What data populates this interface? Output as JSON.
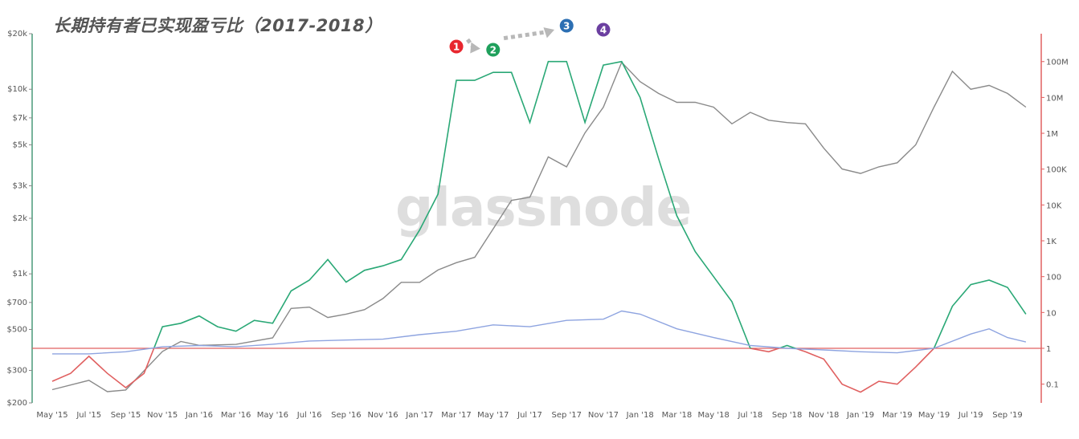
{
  "title": "长期持有者已实现盈亏比（2017-2018）",
  "watermark": "glassnode",
  "chart_data": {
    "type": "line",
    "title": "长期持有者已实现盈亏比（2017-2018）",
    "x_ticks": [
      "May '15",
      "Jul '15",
      "Sep '15",
      "Nov '15",
      "Jan '16",
      "Mar '16",
      "May '16",
      "Jul '16",
      "Sep '16",
      "Nov '16",
      "Jan '17",
      "Mar '17",
      "May '17",
      "Jul '17",
      "Sep '17",
      "Nov '17",
      "Jan '18",
      "Mar '18",
      "May '18",
      "Jul '18",
      "Sep '18",
      "Nov '18",
      "Jan '19",
      "Mar '19",
      "May '19",
      "Jul '19",
      "Sep '19"
    ],
    "left_axis": {
      "scale": "log",
      "unit": "USD",
      "range": [
        200,
        20000
      ],
      "ticks": [
        {
          "v": 200,
          "label": "$200"
        },
        {
          "v": 300,
          "label": "$300"
        },
        {
          "v": 500,
          "label": "$500"
        },
        {
          "v": 700,
          "label": "$700"
        },
        {
          "v": 1000,
          "label": "$1k"
        },
        {
          "v": 2000,
          "label": "$2k"
        },
        {
          "v": 3000,
          "label": "$3k"
        },
        {
          "v": 5000,
          "label": "$5k"
        },
        {
          "v": 7000,
          "label": "$7k"
        },
        {
          "v": 10000,
          "label": "$10k"
        },
        {
          "v": 20000,
          "label": "$20k"
        }
      ]
    },
    "right_axis": {
      "scale": "log",
      "range": [
        0.03,
        600000000
      ],
      "color": "#e06060",
      "ticks": [
        {
          "v": 0.1,
          "label": "0.1"
        },
        {
          "v": 1,
          "label": "1"
        },
        {
          "v": 10,
          "label": "10"
        },
        {
          "v": 100,
          "label": "100"
        },
        {
          "v": 1000,
          "label": "1K"
        },
        {
          "v": 10000,
          "label": "10K"
        },
        {
          "v": 100000,
          "label": "100K"
        },
        {
          "v": 1000000,
          "label": "1M"
        },
        {
          "v": 10000000,
          "label": "10M"
        },
        {
          "v": 100000000,
          "label": "100M"
        }
      ]
    },
    "reference_line": 1,
    "series": [
      {
        "axis": "left",
        "color": "#8a8a8a",
        "points": [
          [
            "May '15",
            236
          ],
          [
            "Jul '15",
            265
          ],
          [
            "Aug '15",
            230
          ],
          [
            "Sep '15",
            235
          ],
          [
            "Nov '15",
            380
          ],
          [
            "Dec '15",
            430
          ],
          [
            "Jan '16",
            410
          ],
          [
            "Mar '16",
            415
          ],
          [
            "May '16",
            450
          ],
          [
            "Jun '16",
            650
          ],
          [
            "Jul '16",
            660
          ],
          [
            "Aug '16",
            580
          ],
          [
            "Sep '16",
            605
          ],
          [
            "Oct '16",
            640
          ],
          [
            "Nov '16",
            735
          ],
          [
            "Dec '16",
            900
          ],
          [
            "Jan '17",
            900
          ],
          [
            "Feb '17",
            1050
          ],
          [
            "Mar '17",
            1150
          ],
          [
            "Apr '17",
            1230
          ],
          [
            "May '17",
            1750
          ],
          [
            "Jun '17",
            2500
          ],
          [
            "Jul '17",
            2600
          ],
          [
            "Aug '17",
            4300
          ],
          [
            "Sep '17",
            3800
          ],
          [
            "Oct '17",
            5800
          ],
          [
            "Nov '17",
            8000
          ],
          [
            "Dec '17",
            14000
          ],
          [
            "Jan '18",
            11000
          ],
          [
            "Feb '18",
            9500
          ],
          [
            "Mar '18",
            8500
          ],
          [
            "Apr '18",
            8500
          ],
          [
            "May '18",
            8000
          ],
          [
            "Jun '18",
            6500
          ],
          [
            "Jul '18",
            7500
          ],
          [
            "Aug '18",
            6800
          ],
          [
            "Sep '18",
            6600
          ],
          [
            "Oct '18",
            6500
          ],
          [
            "Nov '18",
            4800
          ],
          [
            "Dec '18",
            3700
          ],
          [
            "Jan '19",
            3500
          ],
          [
            "Feb '19",
            3800
          ],
          [
            "Mar '19",
            4000
          ],
          [
            "Apr '19",
            5000
          ],
          [
            "May '19",
            8000
          ],
          [
            "Jun '19",
            12500
          ],
          [
            "Jul '19",
            10000
          ],
          [
            "Aug '19",
            10500
          ],
          [
            "Sep '19",
            9500
          ],
          [
            "Oct '19",
            8000
          ]
        ]
      },
      {
        "axis": "right",
        "color": "#2aa876",
        "color_below_1": "#e06060",
        "points": [
          [
            "May '15",
            0.12
          ],
          [
            "Jun '15",
            0.2
          ],
          [
            "Jul '15",
            0.6
          ],
          [
            "Aug '15",
            0.2
          ],
          [
            "Sep '15",
            0.08
          ],
          [
            "Oct '15",
            0.2
          ],
          [
            "Nov '15",
            4
          ],
          [
            "Dec '15",
            5
          ],
          [
            "Jan '16",
            8
          ],
          [
            "Feb '16",
            4
          ],
          [
            "Mar '16",
            3
          ],
          [
            "Apr '16",
            6
          ],
          [
            "May '16",
            5
          ],
          [
            "Jun '16",
            40
          ],
          [
            "Jul '16",
            80
          ],
          [
            "Aug '16",
            300
          ],
          [
            "Sep '16",
            70
          ],
          [
            "Oct '16",
            150
          ],
          [
            "Nov '16",
            200
          ],
          [
            "Dec '16",
            300
          ],
          [
            "Jan '17",
            2000
          ],
          [
            "Feb '17",
            20000
          ],
          [
            "Mar '17",
            30000000
          ],
          [
            "Apr '17",
            30000000
          ],
          [
            "May '17",
            50000000
          ],
          [
            "Jun '17",
            50000000
          ],
          [
            "Jul '17",
            2000000
          ],
          [
            "Aug '17",
            100000000
          ],
          [
            "Sep '17",
            100000000
          ],
          [
            "Oct '17",
            2000000
          ],
          [
            "Nov '17",
            80000000
          ],
          [
            "Dec '17",
            100000000
          ],
          [
            "Jan '18",
            10000000
          ],
          [
            "Feb '18",
            200000
          ],
          [
            "Mar '18",
            5000
          ],
          [
            "Apr '18",
            500
          ],
          [
            "May '18",
            100
          ],
          [
            "Jun '18",
            20
          ],
          [
            "Jul '18",
            1
          ],
          [
            "Aug '18",
            0.8
          ],
          [
            "Sep '18",
            1.2
          ],
          [
            "Oct '18",
            0.8
          ],
          [
            "Nov '18",
            0.5
          ],
          [
            "Dec '18",
            0.1
          ],
          [
            "Jan '19",
            0.06
          ],
          [
            "Feb '19",
            0.12
          ],
          [
            "Mar '19",
            0.1
          ],
          [
            "Apr '19",
            0.3
          ],
          [
            "May '19",
            1
          ],
          [
            "Jun '19",
            15
          ],
          [
            "Jul '19",
            60
          ],
          [
            "Aug '19",
            80
          ],
          [
            "Sep '19",
            50
          ],
          [
            "Oct '19",
            9
          ]
        ]
      },
      {
        "axis": "right",
        "color": "#8ea4e0",
        "points": [
          [
            "May '15",
            0.7
          ],
          [
            "Jul '15",
            0.7
          ],
          [
            "Sep '15",
            0.8
          ],
          [
            "Nov '15",
            1.1
          ],
          [
            "Jan '16",
            1.2
          ],
          [
            "Mar '16",
            1.1
          ],
          [
            "May '16",
            1.3
          ],
          [
            "Jul '16",
            1.6
          ],
          [
            "Sep '16",
            1.7
          ],
          [
            "Nov '16",
            1.8
          ],
          [
            "Jan '17",
            2.4
          ],
          [
            "Mar '17",
            3
          ],
          [
            "May '17",
            4.5
          ],
          [
            "Jul '17",
            4
          ],
          [
            "Sep '17",
            6
          ],
          [
            "Nov '17",
            6.5
          ],
          [
            "Dec '17",
            11
          ],
          [
            "Jan '18",
            9
          ],
          [
            "Mar '18",
            3.5
          ],
          [
            "May '18",
            2
          ],
          [
            "Jul '18",
            1.2
          ],
          [
            "Sep '18",
            1
          ],
          [
            "Nov '18",
            0.9
          ],
          [
            "Jan '19",
            0.8
          ],
          [
            "Mar '19",
            0.75
          ],
          [
            "May '19",
            1
          ],
          [
            "Jul '19",
            2.5
          ],
          [
            "Aug '19",
            3.5
          ],
          [
            "Sep '19",
            2
          ],
          [
            "Oct '19",
            1.5
          ]
        ]
      }
    ],
    "annotations": [
      {
        "label": "1",
        "x": "Mar '17",
        "color": "#e8262e"
      },
      {
        "label": "2",
        "x": "May '17",
        "color": "#1fa05c"
      },
      {
        "label": "3",
        "x": "Sep '17",
        "color": "#2c6fb3"
      },
      {
        "label": "4",
        "x": "Nov '17",
        "color": "#6b3fa0"
      }
    ]
  }
}
